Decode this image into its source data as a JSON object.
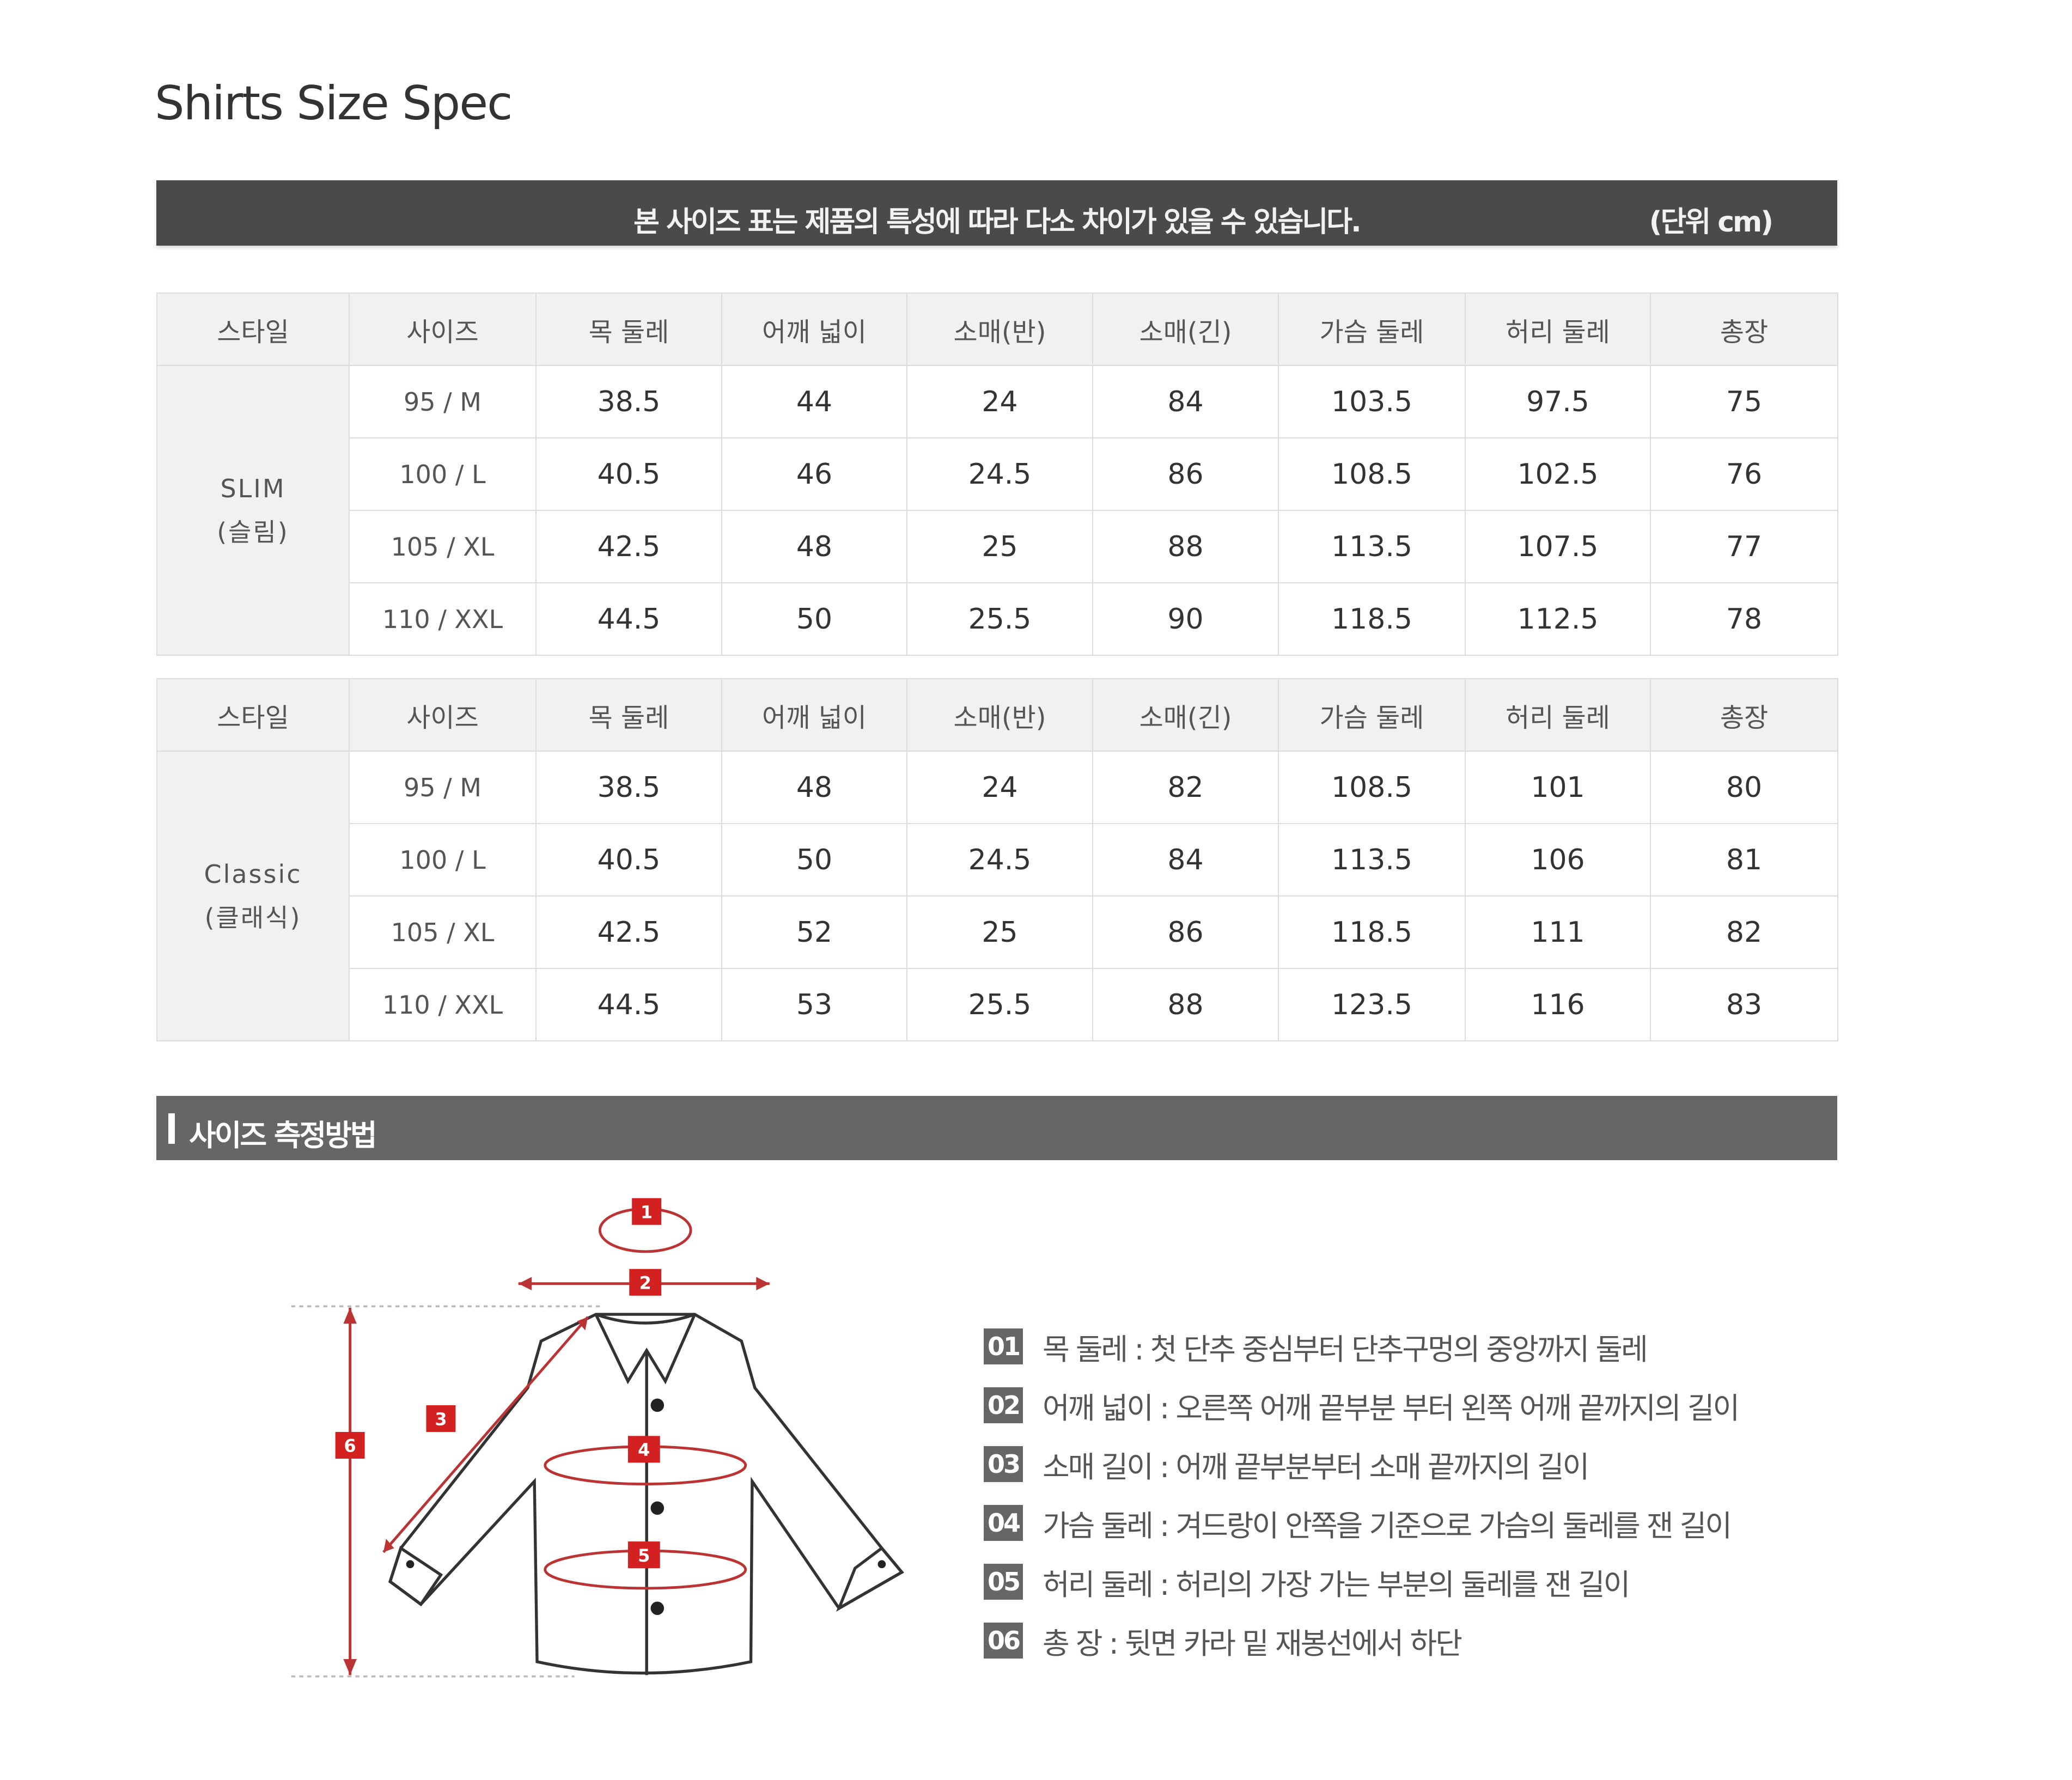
{
  "title": "Shirts Size Spec",
  "notice": {
    "text": "본 사이즈 표는 제품의 특성에 따라 다소 차이가 있을 수 있습니다.",
    "unit": "(단위 cm)"
  },
  "headers": [
    "스타일",
    "사이즈",
    "목 둘레",
    "어깨 넓이",
    "소매(반)",
    "소매(긴)",
    "가슴 둘레",
    "허리 둘레",
    "총장"
  ],
  "tables": [
    {
      "style_name": "SLIM",
      "style_sub": "(슬림)",
      "rows": [
        {
          "size": "95 / M",
          "values": [
            "38.5",
            "44",
            "24",
            "84",
            "103.5",
            "97.5",
            "75"
          ]
        },
        {
          "size": "100 / L",
          "values": [
            "40.5",
            "46",
            "24.5",
            "86",
            "108.5",
            "102.5",
            "76"
          ]
        },
        {
          "size": "105 / XL",
          "values": [
            "42.5",
            "48",
            "25",
            "88",
            "113.5",
            "107.5",
            "77"
          ]
        },
        {
          "size": "110 / XXL",
          "values": [
            "44.5",
            "50",
            "25.5",
            "90",
            "118.5",
            "112.5",
            "78"
          ]
        }
      ]
    },
    {
      "style_name": "Classic",
      "style_sub": "(클래식)",
      "rows": [
        {
          "size": "95 / M",
          "values": [
            "38.5",
            "48",
            "24",
            "82",
            "108.5",
            "101",
            "80"
          ]
        },
        {
          "size": "100 / L",
          "values": [
            "40.5",
            "50",
            "24.5",
            "84",
            "113.5",
            "106",
            "81"
          ]
        },
        {
          "size": "105 / XL",
          "values": [
            "42.5",
            "52",
            "25",
            "86",
            "118.5",
            "111",
            "82"
          ]
        },
        {
          "size": "110 / XXL",
          "values": [
            "44.5",
            "53",
            "25.5",
            "88",
            "123.5",
            "116",
            "83"
          ]
        }
      ]
    }
  ],
  "section": {
    "title": "사이즈 측정방법"
  },
  "diagram": {
    "markers": [
      "1",
      "2",
      "3",
      "4",
      "5",
      "6"
    ],
    "accent": "#d32020"
  },
  "measurements": [
    {
      "num": "01",
      "text": "목 둘레 : 첫 단추 중심부터 단추구멍의 중앙까지 둘레"
    },
    {
      "num": "02",
      "text": "어깨 넓이 : 오른쪽 어깨 끝부분 부터 왼쪽 어깨 끝까지의 길이"
    },
    {
      "num": "03",
      "text": "소매 길이 : 어깨 끝부분부터 소매 끝까지의 길이"
    },
    {
      "num": "04",
      "text": "가슴 둘레 : 겨드랑이 안쪽을 기준으로 가슴의 둘레를 잰 길이"
    },
    {
      "num": "05",
      "text": "허리 둘레 : 허리의 가장 가는 부분의 둘레를 잰 길이"
    },
    {
      "num": "06",
      "text": "총 장 : 뒷면 카라 밑 재봉선에서 하단"
    }
  ]
}
